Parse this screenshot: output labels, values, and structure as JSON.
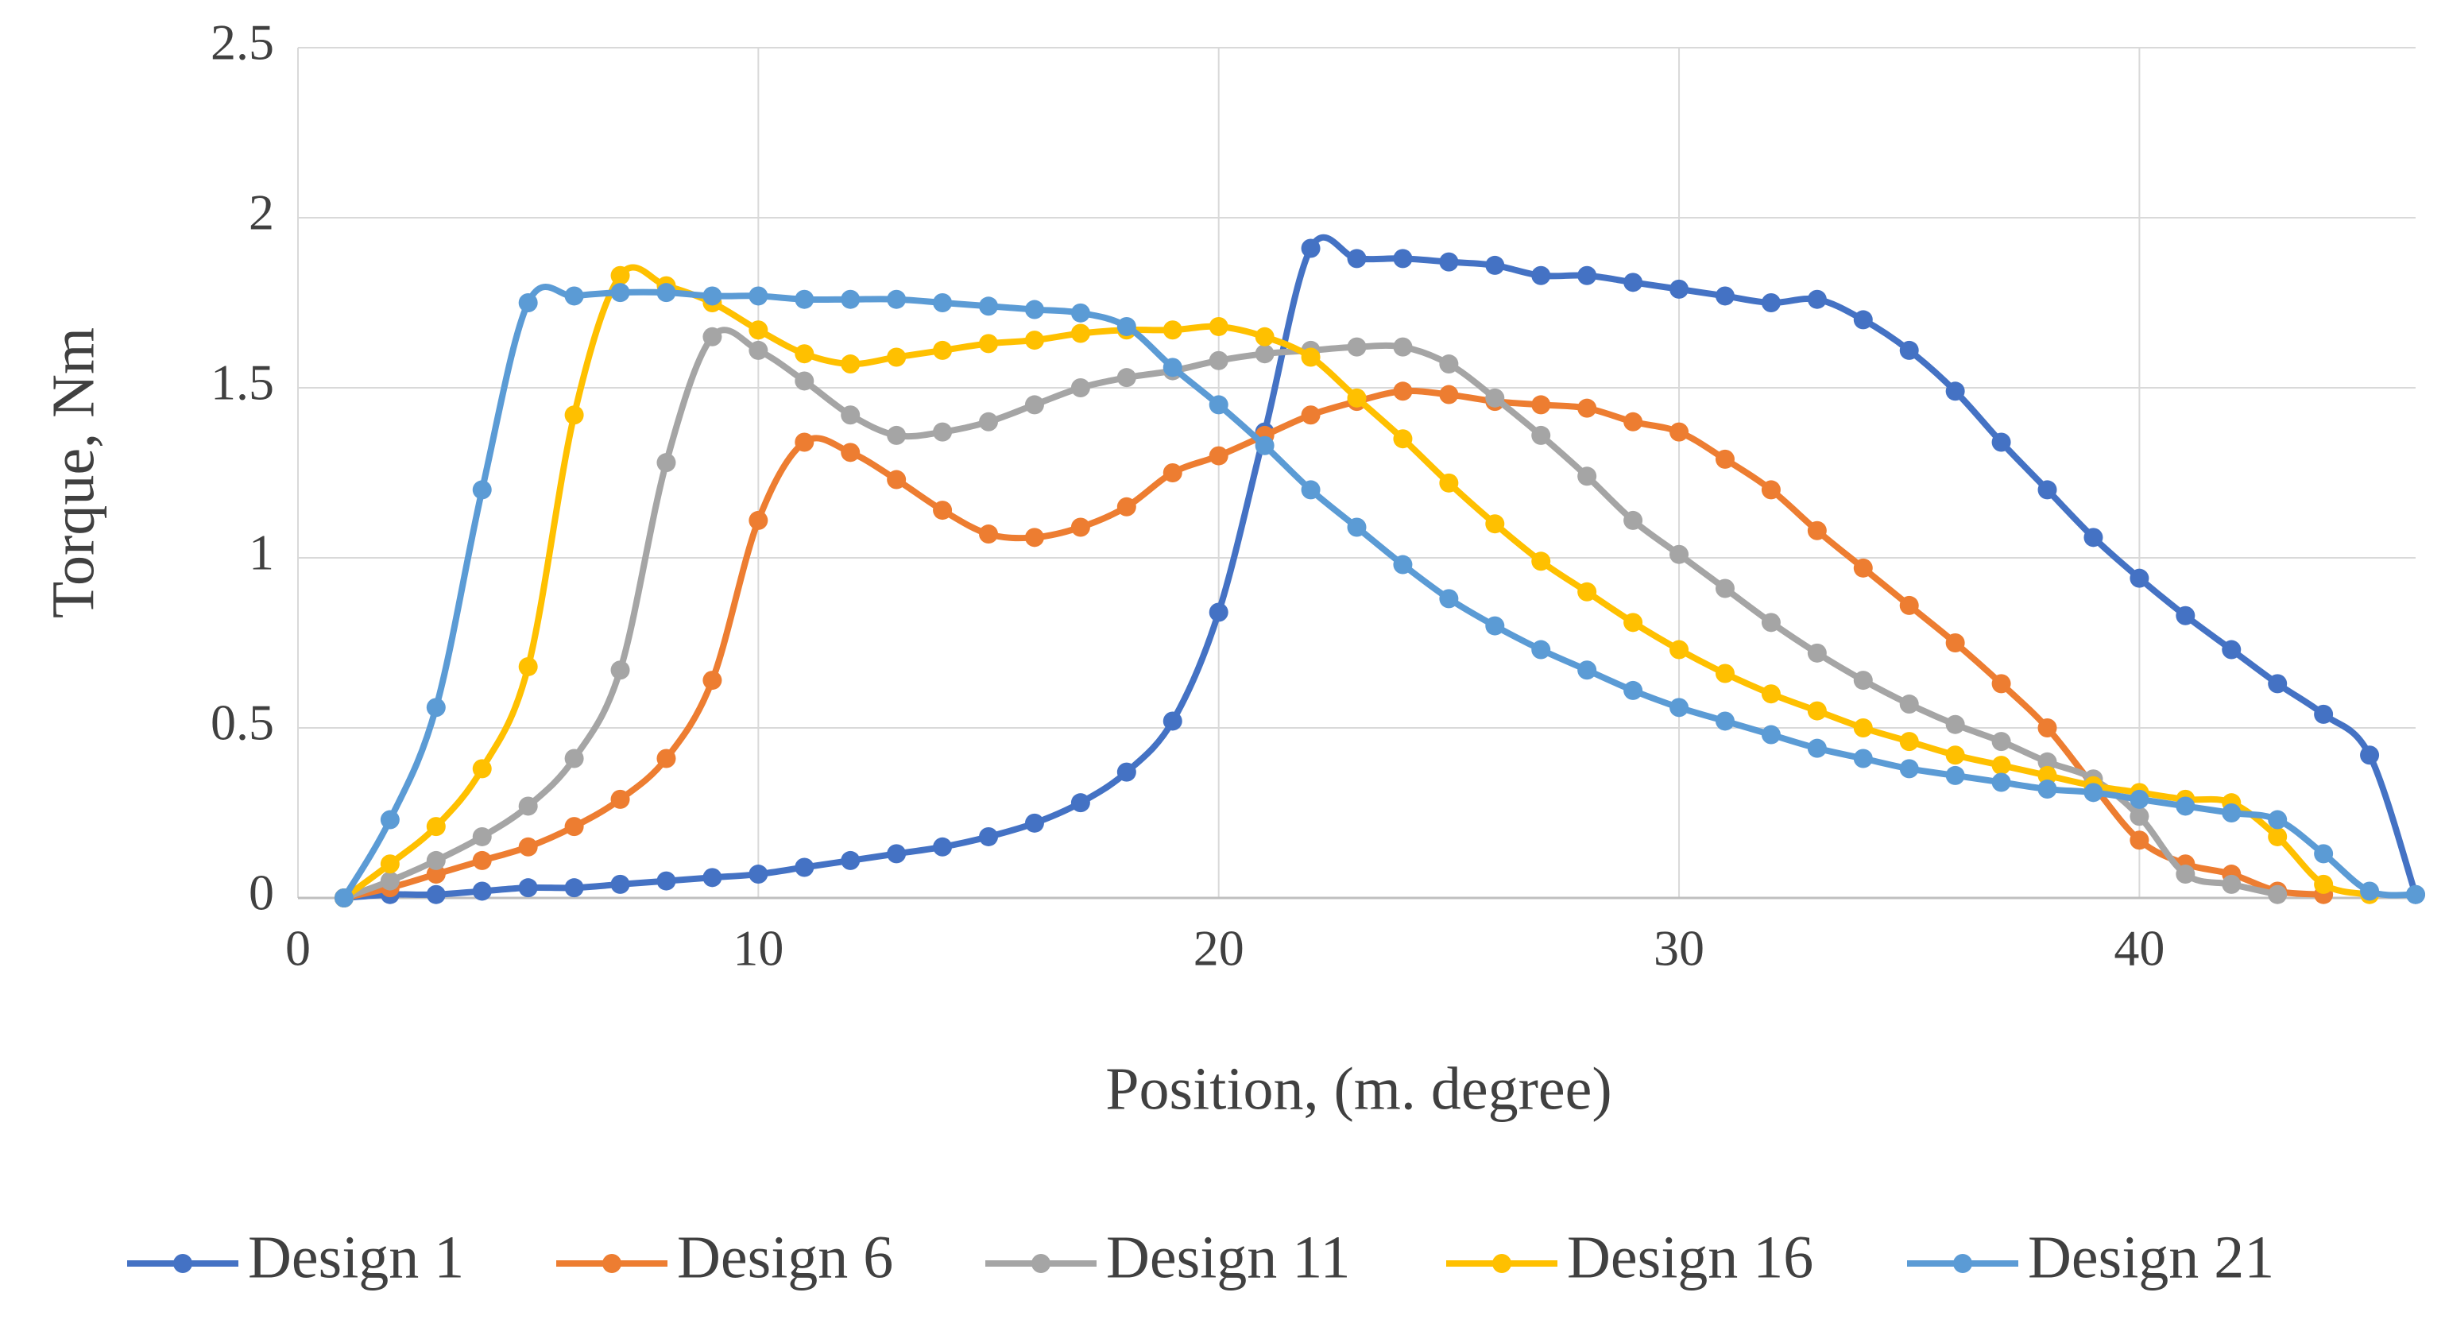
{
  "chart_data": {
    "type": "line",
    "xlabel": "Position, (m. degree)",
    "ylabel": "Torque, Nm",
    "x": [
      1,
      2,
      3,
      4,
      5,
      6,
      7,
      8,
      9,
      10,
      11,
      12,
      13,
      14,
      15,
      16,
      17,
      18,
      19,
      20,
      21,
      22,
      23,
      24,
      25,
      26,
      27,
      28,
      29,
      30,
      31,
      32,
      33,
      34,
      35,
      36,
      37,
      38,
      39,
      40,
      41,
      42,
      43,
      44,
      45,
      46
    ],
    "xlim": [
      0,
      46
    ],
    "xticks": [
      0,
      10,
      20,
      30,
      40
    ],
    "ylim": [
      0,
      2.5
    ],
    "yticks": [
      0,
      0.5,
      1,
      1.5,
      2,
      2.5
    ],
    "grid": true,
    "legend": "bottom",
    "series": [
      {
        "name": "Design 1",
        "color": "#4472c4",
        "values": [
          0,
          0.01,
          0.01,
          0.02,
          0.03,
          0.03,
          0.04,
          0.05,
          0.06,
          0.07,
          0.09,
          0.11,
          0.13,
          0.15,
          0.18,
          0.22,
          0.28,
          0.37,
          0.52,
          0.84,
          1.37,
          1.91,
          1.88,
          1.88,
          1.87,
          1.86,
          1.83,
          1.83,
          1.81,
          1.79,
          1.77,
          1.75,
          1.76,
          1.7,
          1.61,
          1.49,
          1.34,
          1.2,
          1.06,
          0.94,
          0.83,
          0.73,
          0.63,
          0.54,
          0.42,
          0.01
        ]
      },
      {
        "name": "Design 6",
        "color": "#ed7d31",
        "values": [
          0,
          0.03,
          0.07,
          0.11,
          0.15,
          0.21,
          0.29,
          0.41,
          0.64,
          1.11,
          1.34,
          1.31,
          1.23,
          1.14,
          1.07,
          1.06,
          1.09,
          1.15,
          1.25,
          1.3,
          1.36,
          1.42,
          1.46,
          1.49,
          1.48,
          1.46,
          1.45,
          1.44,
          1.4,
          1.37,
          1.29,
          1.2,
          1.08,
          0.97,
          0.86,
          0.75,
          0.63,
          0.5,
          0.33,
          0.17,
          0.1,
          0.07,
          0.02,
          0.01,
          null,
          null
        ]
      },
      {
        "name": "Design 11",
        "color": "#a5a5a5",
        "values": [
          0,
          0.05,
          0.11,
          0.18,
          0.27,
          0.41,
          0.67,
          1.28,
          1.65,
          1.61,
          1.52,
          1.42,
          1.36,
          1.37,
          1.4,
          1.45,
          1.5,
          1.53,
          1.55,
          1.58,
          1.6,
          1.61,
          1.62,
          1.62,
          1.57,
          1.47,
          1.36,
          1.24,
          1.11,
          1.01,
          0.91,
          0.81,
          0.72,
          0.64,
          0.57,
          0.51,
          0.46,
          0.4,
          0.35,
          0.24,
          0.07,
          0.04,
          0.01,
          null,
          null,
          null
        ]
      },
      {
        "name": "Design 16",
        "color": "#ffc000",
        "values": [
          0,
          0.1,
          0.21,
          0.38,
          0.68,
          1.42,
          1.83,
          1.8,
          1.75,
          1.67,
          1.6,
          1.57,
          1.59,
          1.61,
          1.63,
          1.64,
          1.66,
          1.67,
          1.67,
          1.68,
          1.65,
          1.59,
          1.47,
          1.35,
          1.22,
          1.1,
          0.99,
          0.9,
          0.81,
          0.73,
          0.66,
          0.6,
          0.55,
          0.5,
          0.46,
          0.42,
          0.39,
          0.36,
          0.33,
          0.31,
          0.29,
          0.28,
          0.18,
          0.04,
          0.01,
          null
        ]
      },
      {
        "name": "Design 21",
        "color": "#5b9bd5",
        "values": [
          0,
          0.23,
          0.56,
          1.2,
          1.75,
          1.77,
          1.78,
          1.78,
          1.77,
          1.77,
          1.76,
          1.76,
          1.76,
          1.75,
          1.74,
          1.73,
          1.72,
          1.68,
          1.56,
          1.45,
          1.33,
          1.2,
          1.09,
          0.98,
          0.88,
          0.8,
          0.73,
          0.67,
          0.61,
          0.56,
          0.52,
          0.48,
          0.44,
          0.41,
          0.38,
          0.36,
          0.34,
          0.32,
          0.31,
          0.29,
          0.27,
          0.25,
          0.23,
          0.13,
          0.02,
          0.01
        ]
      }
    ]
  }
}
